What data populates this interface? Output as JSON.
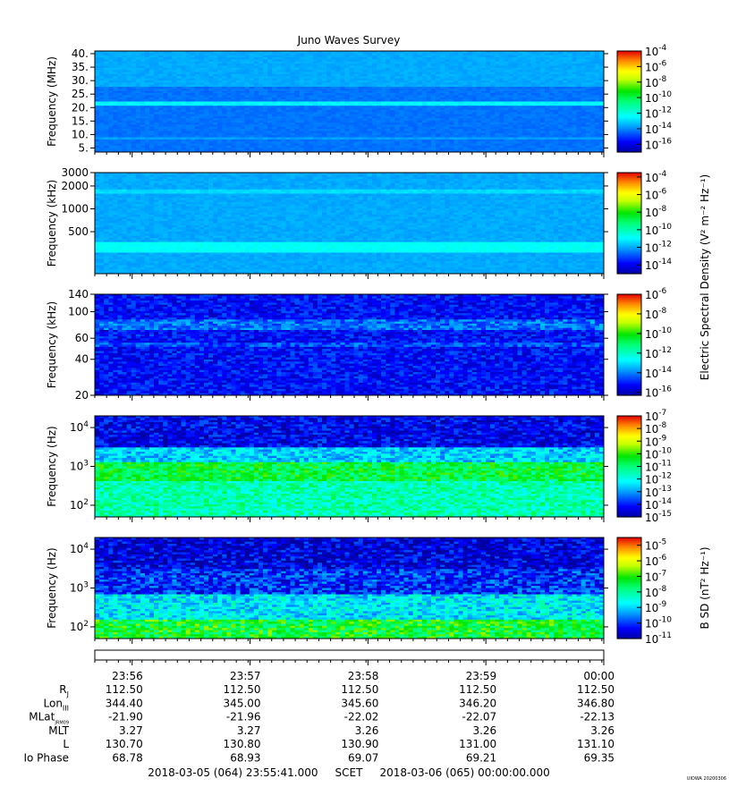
{
  "title": "Juno Waves Survey",
  "credit": "UIOWA 20200306",
  "colors": {
    "axis": "#000000",
    "background": "#ffffff"
  },
  "chart_data": [
    {
      "type": "heatmap",
      "ylabel": "Frequency (MHz)",
      "yscale": "linear",
      "ylim": [
        3.5,
        41
      ],
      "yticks": [
        {
          "value": 5,
          "label": "5."
        },
        {
          "value": 10,
          "label": "10."
        },
        {
          "value": 15,
          "label": "15."
        },
        {
          "value": 20,
          "label": "20."
        },
        {
          "value": 25,
          "label": "25."
        },
        {
          "value": 30,
          "label": "30."
        },
        {
          "value": 35,
          "label": "35."
        },
        {
          "value": 40,
          "label": "40."
        }
      ],
      "bands": [
        {
          "from": 3.5,
          "to": 41,
          "level": -14.3
        },
        {
          "from": 20.5,
          "to": 22.5,
          "level": -12.6
        },
        {
          "from": 8.3,
          "to": 9.0,
          "level": -13.7
        },
        {
          "from": 28,
          "to": 41,
          "level": -13.6
        }
      ],
      "colorbar": {
        "range": [
          -17,
          -4
        ],
        "ticks": [
          {
            "exp": -4,
            "label": "-4"
          },
          {
            "exp": -6,
            "label": "-6"
          },
          {
            "exp": -8,
            "label": "-8"
          },
          {
            "exp": -10,
            "label": "-10"
          },
          {
            "exp": -12,
            "label": "-12"
          },
          {
            "exp": -14,
            "label": "-14"
          },
          {
            "exp": -16,
            "label": "-16"
          }
        ]
      }
    },
    {
      "type": "heatmap",
      "ylabel": "Frequency (kHz)",
      "yscale": "log",
      "ylim": [
        140,
        3000
      ],
      "yticks": [
        {
          "value": 500,
          "label": "500"
        },
        {
          "value": 1000,
          "label": "1000"
        },
        {
          "value": 2000,
          "label": "2000"
        },
        {
          "value": 3000,
          "label": "3000"
        }
      ],
      "bands": [
        {
          "from": 140,
          "to": 3000,
          "level": -12.0
        },
        {
          "from": 270,
          "to": 360,
          "level": -10.9
        },
        {
          "from": 1550,
          "to": 1800,
          "level": -11.4
        }
      ],
      "colorbar": {
        "range": [
          -15,
          -3.5
        ],
        "ticks": [
          {
            "exp": -4,
            "label": "-4"
          },
          {
            "exp": -6,
            "label": "-6"
          },
          {
            "exp": -8,
            "label": "-8"
          },
          {
            "exp": -10,
            "label": "-10"
          },
          {
            "exp": -12,
            "label": "-12"
          },
          {
            "exp": -14,
            "label": "-14"
          }
        ]
      }
    },
    {
      "type": "heatmap",
      "ylabel": "Frequency (kHz)",
      "yscale": "log",
      "ylim": [
        20,
        140
      ],
      "yticks": [
        {
          "value": 20,
          "label": "20"
        },
        {
          "value": 40,
          "label": "40"
        },
        {
          "value": 60,
          "label": "60"
        },
        {
          "value": 100,
          "label": "100"
        },
        {
          "value": 140,
          "label": "140"
        }
      ],
      "bands": [
        {
          "from": 20,
          "to": 140,
          "level": -15.2
        },
        {
          "from": 70,
          "to": 85,
          "level": -14.2
        },
        {
          "from": 50,
          "to": 56,
          "level": -14.5
        }
      ],
      "colorbar": {
        "range": [
          -16.3,
          -6
        ],
        "ticks": [
          {
            "exp": -6,
            "label": "-6"
          },
          {
            "exp": -8,
            "label": "-8"
          },
          {
            "exp": -10,
            "label": "-10"
          },
          {
            "exp": -12,
            "label": "-12"
          },
          {
            "exp": -14,
            "label": "-14"
          },
          {
            "exp": -16,
            "label": "-16"
          }
        ]
      },
      "colorbar_label": "Electric Spectral Density (V² m⁻² Hz⁻¹)"
    },
    {
      "type": "heatmap",
      "ylabel": "Frequency (Hz)",
      "yscale": "log",
      "ylim": [
        50,
        20000
      ],
      "yticks": [
        {
          "value": 100,
          "label": "10",
          "sup": "2"
        },
        {
          "value": 1000,
          "label": "10",
          "sup": "3"
        },
        {
          "value": 10000,
          "label": "10",
          "sup": "4"
        }
      ],
      "bands": [
        {
          "from": 50,
          "to": 20000,
          "level": -14.3
        },
        {
          "from": 50,
          "to": 400,
          "level": -11.5
        },
        {
          "from": 400,
          "to": 1300,
          "level": -10.6
        },
        {
          "from": 1300,
          "to": 3000,
          "level": -12.6
        },
        {
          "from": 3000,
          "to": 20000,
          "level": -14.3
        }
      ],
      "colorbar": {
        "range": [
          -15,
          -7
        ],
        "ticks": [
          {
            "exp": -7,
            "label": "-7"
          },
          {
            "exp": -8,
            "label": "-8"
          },
          {
            "exp": -9,
            "label": "-9"
          },
          {
            "exp": -10,
            "label": "-10"
          },
          {
            "exp": -11,
            "label": "-11"
          },
          {
            "exp": -12,
            "label": "-12"
          },
          {
            "exp": -13,
            "label": "-13"
          },
          {
            "exp": -14,
            "label": "-14"
          },
          {
            "exp": -15,
            "label": "-15"
          }
        ]
      }
    },
    {
      "type": "heatmap",
      "ylabel": "Frequency (Hz)",
      "yscale": "log",
      "ylim": [
        50,
        20000
      ],
      "yticks": [
        {
          "value": 100,
          "label": "10",
          "sup": "2"
        },
        {
          "value": 1000,
          "label": "10",
          "sup": "3"
        },
        {
          "value": 10000,
          "label": "10",
          "sup": "4"
        }
      ],
      "bands": [
        {
          "from": 50,
          "to": 20000,
          "level": -10.0
        },
        {
          "from": 50,
          "to": 150,
          "level": -7.3
        },
        {
          "from": 150,
          "to": 700,
          "level": -8.8
        },
        {
          "from": 700,
          "to": 3000,
          "level": -10.1
        },
        {
          "from": 3000,
          "to": 20000,
          "level": -10.6
        }
      ],
      "colorbar": {
        "range": [
          -11,
          -4.5
        ],
        "ticks": [
          {
            "exp": -5,
            "label": "-5"
          },
          {
            "exp": -6,
            "label": "-6"
          },
          {
            "exp": -7,
            "label": "-7"
          },
          {
            "exp": -8,
            "label": "-8"
          },
          {
            "exp": -9,
            "label": "-9"
          },
          {
            "exp": -10,
            "label": "-10"
          },
          {
            "exp": -11,
            "label": "-11"
          }
        ]
      },
      "colorbar_label": "B SD (nT² Hz⁻¹)"
    }
  ],
  "time_axis": {
    "ticks": [
      "23:56",
      "23:57",
      "23:58",
      "23:59",
      "00:00"
    ],
    "rows": [
      {
        "label": "R",
        "sub": "J",
        "values": [
          "112.50",
          "112.50",
          "112.50",
          "112.50",
          "112.50"
        ]
      },
      {
        "label": "Lon",
        "sub": "III",
        "values": [
          "344.40",
          "345.00",
          "345.60",
          "346.20",
          "346.80"
        ]
      },
      {
        "label": "MLat",
        "sub": "JRM09",
        "values": [
          "-21.90",
          "-21.96",
          "-22.02",
          "-22.07",
          "-22.13"
        ]
      },
      {
        "label": "MLT",
        "sub": "",
        "values": [
          "3.27",
          "3.27",
          "3.26",
          "3.26",
          "3.26"
        ]
      },
      {
        "label": "L",
        "sub": "",
        "values": [
          "130.70",
          "130.80",
          "130.90",
          "131.00",
          "131.10"
        ]
      },
      {
        "label": "Io Phase",
        "sub": "",
        "values": [
          "68.78",
          "68.93",
          "69.07",
          "69.21",
          "69.35"
        ]
      }
    ],
    "footer": "2018-03-05 (064) 23:55:41.000     SCET     2018-03-06 (065) 00:00:00.000"
  }
}
